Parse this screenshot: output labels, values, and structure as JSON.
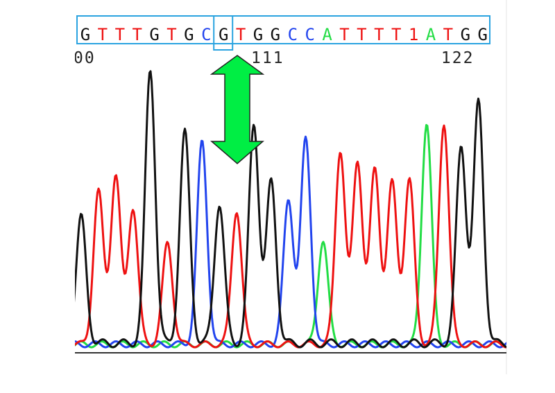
{
  "sequence": {
    "bases": [
      "G",
      "T",
      "T",
      "T",
      "G",
      "T",
      "G",
      "C",
      "G",
      "T",
      "G",
      "G",
      "C",
      "C",
      "A",
      "T",
      "T",
      "T",
      "T",
      "T",
      "A",
      "T",
      "G",
      "G"
    ],
    "display": [
      "G",
      "T",
      "T",
      "T",
      "G",
      "T",
      "G",
      "C",
      "G",
      "T",
      "G",
      "G",
      "C",
      "C",
      "A",
      "T",
      "T",
      "T",
      "T",
      "1",
      "A",
      "T",
      "G",
      "G"
    ]
  },
  "positions": [
    {
      "label": "00",
      "index": 0
    },
    {
      "label": "111",
      "index": 10
    },
    {
      "label": "122",
      "index": 21
    }
  ],
  "highlight": {
    "base_index": 8
  },
  "colors": {
    "A": "#22dd44",
    "C": "#2244ee",
    "G": "#111111",
    "T": "#ee1111",
    "box": "#29a3e0",
    "arrow_fill": "#00ee44",
    "arrow_stroke": "#222222"
  },
  "trace_peaks": [
    {
      "base": "G",
      "height": 0.46
    },
    {
      "base": "T",
      "height": 0.56
    },
    {
      "base": "T",
      "height": 0.62
    },
    {
      "base": "T",
      "height": 0.5
    },
    {
      "base": "G",
      "height": 1.0
    },
    {
      "base": "T",
      "height": 0.37
    },
    {
      "base": "G",
      "height": 0.77
    },
    {
      "base": "C",
      "height": 0.74
    },
    {
      "base": "G",
      "height": 0.51
    },
    {
      "base": "T",
      "height": 0.49
    },
    {
      "base": "G",
      "height": 0.8
    },
    {
      "base": "G",
      "height": 0.59
    },
    {
      "base": "C",
      "height": 0.53
    },
    {
      "base": "C",
      "height": 0.75
    },
    {
      "base": "A",
      "height": 0.38
    },
    {
      "base": "T",
      "height": 0.71
    },
    {
      "base": "T",
      "height": 0.67
    },
    {
      "base": "T",
      "height": 0.64
    },
    {
      "base": "T",
      "height": 0.59
    },
    {
      "base": "T",
      "height": 0.6
    },
    {
      "base": "A",
      "height": 0.81
    },
    {
      "base": "T",
      "height": 0.81
    },
    {
      "base": "G",
      "height": 0.72
    },
    {
      "base": "G",
      "height": 0.88
    }
  ]
}
